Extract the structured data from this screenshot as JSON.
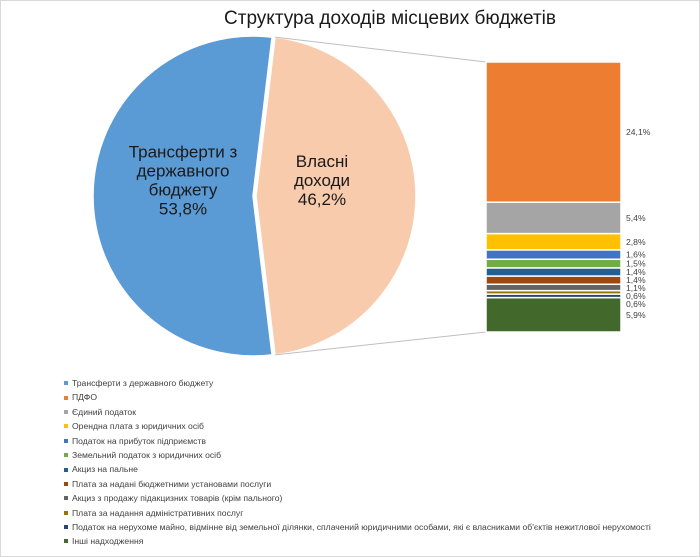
{
  "chart_data": {
    "type": "bar-of-pie",
    "title": "Структура доходів місцевих бюджетів",
    "pie": [
      {
        "name": "Трансферти з державного бюджету",
        "label_lines": [
          "Трансферти з",
          "державного",
          "бюджету",
          "53,8%"
        ],
        "value": 53.8,
        "color": "#5b9bd5"
      },
      {
        "name": "Власні доходи",
        "label_lines": [
          "Власні",
          "доходи",
          "46,2%"
        ],
        "value": 46.2,
        "color": "#f8cbad"
      }
    ],
    "bar_segments": [
      {
        "name": "ПДФО",
        "value": 24.1,
        "label": "24,1%",
        "color": "#ed7d31"
      },
      {
        "name": "Єдиний податок",
        "value": 5.4,
        "label": "5,4%",
        "color": "#a5a5a5"
      },
      {
        "name": "Орендна плата з юридичних осіб",
        "value": 2.8,
        "label": "2,8%",
        "color": "#ffc000"
      },
      {
        "name": "Податок на прибуток підприємств",
        "value": 1.6,
        "label": "1,6%",
        "color": "#4472c4"
      },
      {
        "name": "Земельний податок з юридичних осіб",
        "value": 1.5,
        "label": "1,5%",
        "color": "#70ad47"
      },
      {
        "name": "Акциз на пальне",
        "value": 1.4,
        "label": "1,4%",
        "color": "#255e91"
      },
      {
        "name": "Плата за надані бюджетними установами послуги",
        "value": 1.4,
        "label": "1,4%",
        "color": "#9e480e"
      },
      {
        "name": "Акциз з продажу підакцизних товарів (крім пального)",
        "value": 1.1,
        "label": "1,1%",
        "color": "#636363"
      },
      {
        "name": "Плата за надання адміністративних послуг",
        "value": 0.6,
        "label": "0,6%",
        "color": "#997300"
      },
      {
        "name": "Податок на нерухоме майно, відмінне від земельної ділянки, сплачений  юридичними особами, які є власниками об'єктів нежитлової нерухомості",
        "value": 0.6,
        "label": "0,6%",
        "color": "#264478"
      },
      {
        "name": "Інші надходження",
        "value": 5.9,
        "label": "5,9%",
        "color": "#43682b"
      }
    ],
    "legend": [
      {
        "label": "Трансферти з державного бюджету",
        "color": "#5b9bd5"
      },
      {
        "label": "ПДФО",
        "color": "#ed7d31"
      },
      {
        "label": "Єдиний податок",
        "color": "#a5a5a5"
      },
      {
        "label": "Орендна плата з юридичних осіб",
        "color": "#ffc000"
      },
      {
        "label": "Податок на прибуток підприємств",
        "color": "#4472c4"
      },
      {
        "label": "Земельний податок з юридичних осіб",
        "color": "#70ad47"
      },
      {
        "label": "Акциз на пальне",
        "color": "#255e91"
      },
      {
        "label": "Плата за надані бюджетними установами послуги",
        "color": "#9e480e"
      },
      {
        "label": "Акциз з продажу підакцизних товарів (крім пального)",
        "color": "#636363"
      },
      {
        "label": "Плата за надання адміністративних послуг",
        "color": "#997300"
      },
      {
        "label": "Податок на нерухоме майно, відмінне від земельної ділянки, сплачений  юридичними особами, які є власниками об'єктів нежитлової нерухомості",
        "color": "#264478"
      },
      {
        "label": "Інші надходження",
        "color": "#43682b"
      }
    ],
    "legend_position": "bottom"
  }
}
